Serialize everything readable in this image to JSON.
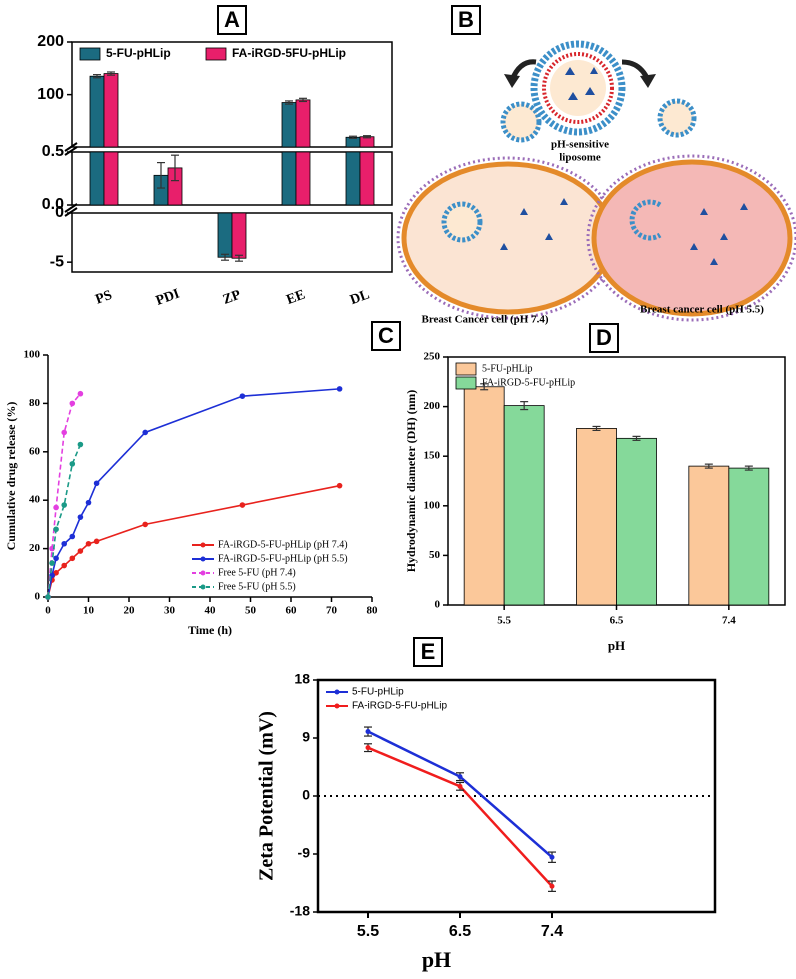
{
  "chart_data": [
    {
      "type": "bar",
      "panel": "A",
      "categories": [
        "PS",
        "PDI",
        "ZP",
        "EE",
        "DL"
      ],
      "segments": [
        {
          "ylim": [
            0.5,
            200
          ],
          "yticks": [
            100,
            200
          ]
        },
        {
          "ylim": [
            0,
            0.5
          ],
          "yticks": [
            {
              "value": 0,
              "label": "0.0"
            },
            0.5
          ]
        },
        {
          "ylim": [
            -6,
            0
          ],
          "yticks": [
            -5,
            0
          ]
        }
      ],
      "series": [
        {
          "name": "5-FU-pHLip",
          "color": "#1b6b80",
          "values": [
            135,
            0.28,
            -4.5,
            85,
            19
          ],
          "errors": [
            3,
            0.12,
            0.3,
            3,
            2
          ]
        },
        {
          "name": "FA-iRGD-5FU-pHLip",
          "color": "#e81f6b",
          "values": [
            140,
            0.35,
            -4.6,
            90,
            20
          ],
          "errors": [
            3,
            0.12,
            0.3,
            3,
            2
          ]
        }
      ],
      "legend": "upper left"
    },
    {
      "type": "line",
      "panel": "C",
      "xlabel": "Time (h)",
      "ylabel": "Cumulative drug release (%)",
      "xlim": [
        0,
        80
      ],
      "xticks": [
        0,
        10,
        20,
        30,
        40,
        50,
        60,
        70,
        80
      ],
      "ylim": [
        0,
        100
      ],
      "yticks": [
        0,
        20,
        40,
        60,
        80,
        100
      ],
      "series": [
        {
          "name": "FA-iRGD-5-FU-pHLip (pH 7.4)",
          "color": "#e8221d",
          "dash": false,
          "x": [
            0,
            1,
            2,
            4,
            6,
            8,
            10,
            12,
            24,
            48,
            72
          ],
          "values": [
            0,
            7,
            10,
            13,
            16,
            19,
            22,
            23,
            30,
            38,
            46
          ]
        },
        {
          "name": "FA-iRGD-5-FU-pHLip (pH 5.5)",
          "color": "#1d2fd6",
          "dash": false,
          "x": [
            0,
            1,
            2,
            4,
            6,
            8,
            10,
            12,
            24,
            48,
            72
          ],
          "values": [
            0,
            9,
            16,
            22,
            25,
            33,
            39,
            47,
            68,
            83,
            86
          ]
        },
        {
          "name": "Free 5-FU (pH 7.4)",
          "color": "#e33fe0",
          "dash": true,
          "x": [
            0,
            1,
            2,
            4,
            6,
            8
          ],
          "values": [
            0,
            20,
            37,
            68,
            80,
            84
          ]
        },
        {
          "name": "Free 5-FU (pH 5.5)",
          "color": "#1a9a87",
          "dash": true,
          "x": [
            0,
            1,
            2,
            4,
            6,
            8
          ],
          "values": [
            0,
            14,
            28,
            38,
            55,
            63
          ]
        }
      ],
      "legend": "lower right"
    },
    {
      "type": "bar",
      "panel": "D",
      "xlabel": "pH",
      "ylabel": "Hydrodynamic diameter (DH) (nm)",
      "categories": [
        "5.5",
        "6.5",
        "7.4"
      ],
      "ylim": [
        0,
        250
      ],
      "yticks": [
        0,
        50,
        100,
        150,
        200,
        250
      ],
      "series": [
        {
          "name": "5-FU-pHLip",
          "color": "#fbc89a",
          "values": [
            220,
            178,
            140
          ],
          "errors": [
            3,
            2,
            2
          ]
        },
        {
          "name": "FA-iRGD-5-FU-pHLip",
          "color": "#85d99a",
          "values": [
            201,
            168,
            138
          ],
          "errors": [
            4,
            2,
            2
          ]
        }
      ],
      "legend": "upper left"
    },
    {
      "type": "line",
      "panel": "E",
      "xlabel": "pH",
      "ylabel": "Zeta Potential (mV)",
      "categories": [
        "5.5",
        "6.5",
        "7.4"
      ],
      "ylim": [
        -18,
        18
      ],
      "yticks": [
        -18,
        -9,
        0,
        9,
        18
      ],
      "zero_line": true,
      "series": [
        {
          "name": "5-FU-pHLip",
          "color": "#1d2fd6",
          "values": [
            10,
            3,
            -9.5
          ],
          "errors": [
            0.7,
            0.6,
            0.8
          ]
        },
        {
          "name": "FA-iRGD-5-FU-pHLip",
          "color": "#f01d1d",
          "values": [
            7.5,
            1.5,
            -14
          ],
          "errors": [
            0.6,
            0.6,
            0.8
          ]
        }
      ],
      "legend": "upper left"
    }
  ],
  "diagram": {
    "panel": "B",
    "liposome_label": [
      "pH-sensitive",
      "liposome"
    ],
    "left_cell": "Breast Cancer cell (pH 7.4)",
    "right_cell": "Breast cancer cell (pH 5.5)"
  }
}
